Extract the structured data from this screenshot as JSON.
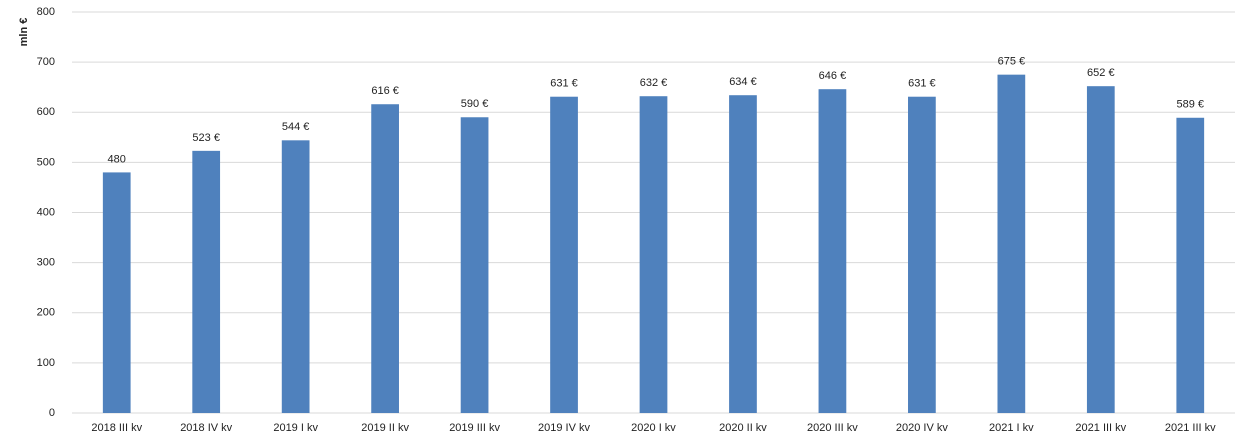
{
  "chart_data": {
    "type": "bar",
    "y_label": "mln €",
    "categories": [
      "2018 III kv",
      "2018 IV kv",
      "2019 I kv",
      "2019 II kv",
      "2019 III kv",
      "2019 IV kv",
      "2020 I kv",
      "2020 II kv",
      "2020 III kv",
      "2020 IV kv",
      "2021 I kv",
      "2021 III kv",
      "2021 III kv"
    ],
    "values": [
      480,
      523,
      544,
      616,
      590,
      631,
      632,
      634,
      646,
      631,
      675,
      652,
      589
    ],
    "value_labels": [
      "480",
      "523 €",
      "544 €",
      "616 €",
      "590 €",
      "631 €",
      "632 €",
      "634 €",
      "646 €",
      "631 €",
      "675 €",
      "652 €",
      "589 €"
    ],
    "color": "#4f81bd",
    "ylim": [
      0,
      800
    ],
    "yticks": [
      0,
      100,
      200,
      300,
      400,
      500,
      600,
      700,
      800
    ],
    "grid": true
  }
}
